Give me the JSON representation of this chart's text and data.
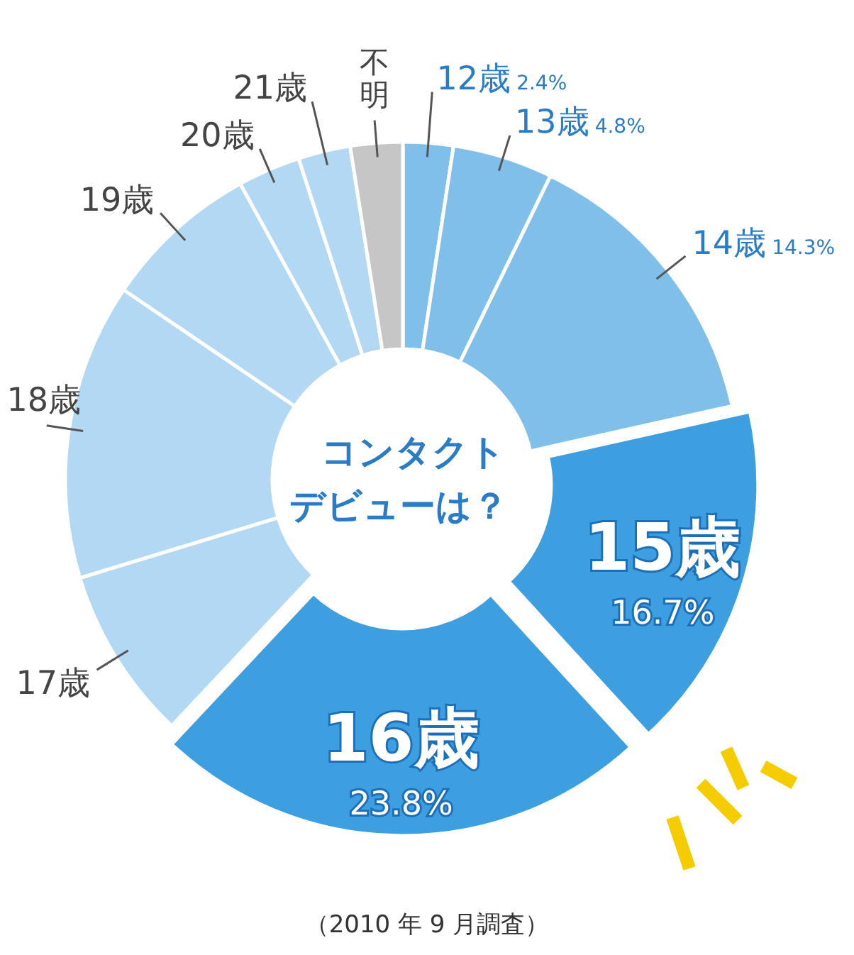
{
  "chart_data": {
    "type": "donut",
    "title": "コンタクトデビューは？",
    "categories": [
      "12歳",
      "13歳",
      "14歳",
      "15歳",
      "16歳",
      "17歳",
      "18歳",
      "19歳",
      "20歳",
      "21歳",
      "不明"
    ],
    "values": [
      2.4,
      4.8,
      14.3,
      16.7,
      23.8,
      8.3,
      14.2,
      7.5,
      3.0,
      2.5,
      2.5
    ],
    "value_labels": [
      "2.4%",
      "4.8%",
      "14.3%",
      "16.7%",
      "23.8%",
      null,
      null,
      null,
      null,
      null,
      null
    ],
    "colors": [
      "#7fbfea",
      "#7fbfea",
      "#7fbfea",
      "#3d9fe0",
      "#3d9fe0",
      "#b3d8f3",
      "#b3d8f3",
      "#b3d8f3",
      "#b3d8f3",
      "#b3d8f3",
      "#c6c6c6"
    ],
    "annotations": [
      "（2010 年 9 月調査）"
    ],
    "legend": false
  }
}
